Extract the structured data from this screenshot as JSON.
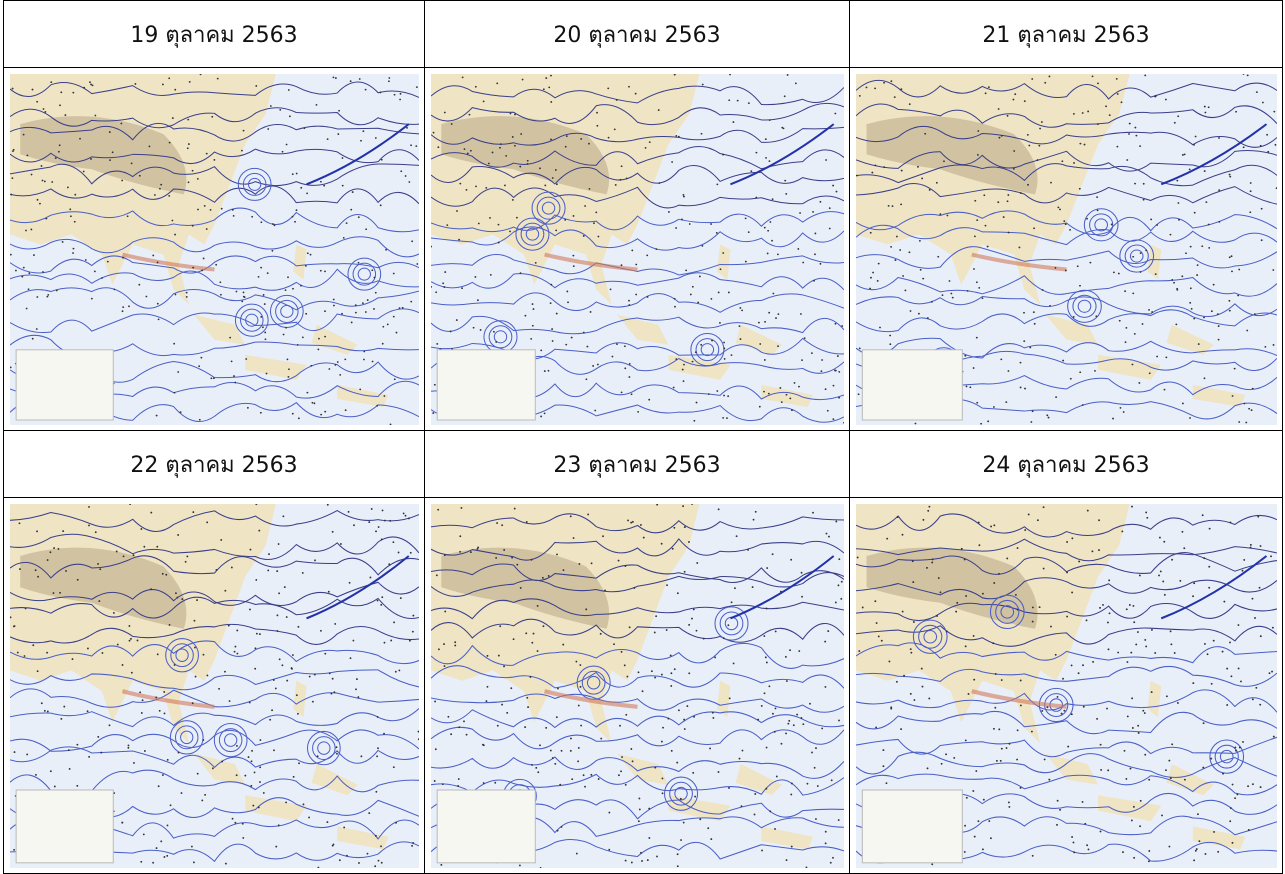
{
  "table": {
    "cells": [
      {
        "label": "19 ตุลาคม 2563"
      },
      {
        "label": "20 ตุลาคม 2563"
      },
      {
        "label": "21 ตุลาคม 2563"
      },
      {
        "label": "22 ตุลาคม 2563"
      },
      {
        "label": "23 ตุลาคม 2563"
      },
      {
        "label": "24 ตุลาคม 2563"
      }
    ]
  }
}
